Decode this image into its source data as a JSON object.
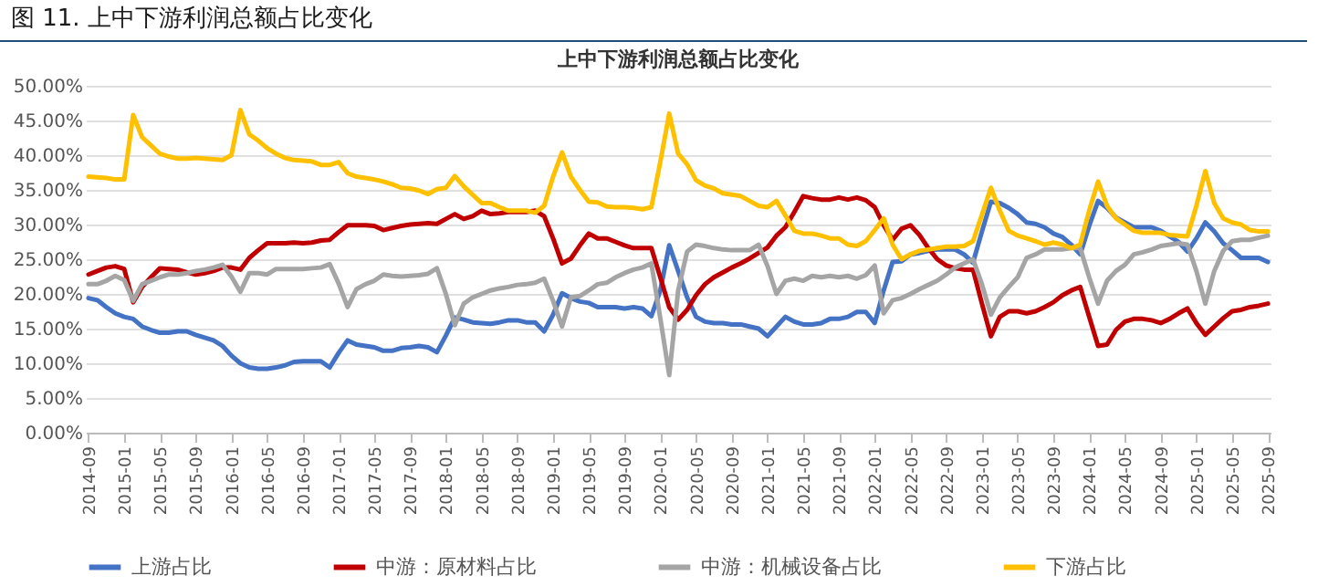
{
  "chart_data": {
    "type": "line",
    "title": "图 11. 上中下游利润总额占比变化",
    "subtitle": "上中下游利润总额占比变化",
    "categories": [
      "2014-09",
      null,
      null,
      null,
      "2015-01",
      null,
      null,
      null,
      "2015-05",
      null,
      null,
      null,
      "2015-09",
      null,
      null,
      null,
      "2016-01",
      null,
      null,
      null,
      "2016-05",
      null,
      null,
      null,
      "2016-09",
      null,
      null,
      null,
      "2017-01",
      null,
      null,
      null,
      "2017-05",
      null,
      null,
      null,
      "2017-09",
      null,
      null,
      null,
      "2018-01",
      null,
      null,
      null,
      "2018-05",
      null,
      null,
      null,
      "2018-09",
      null,
      null,
      null,
      "2019-01",
      null,
      null,
      null,
      "2019-05",
      null,
      null,
      null,
      "2019-09",
      null,
      null,
      null,
      "2020-01",
      null,
      null,
      null,
      "2020-05",
      null,
      null,
      null,
      "2020-09",
      null,
      null,
      null,
      "2021-01",
      null,
      null,
      null,
      "2021-05",
      null,
      null,
      null,
      "2021-09",
      null,
      null,
      null,
      "2022-01",
      null,
      null,
      null,
      "2022-05",
      null,
      null,
      null,
      "2022-09",
      null,
      null,
      null,
      "2023-01",
      null,
      null,
      null,
      "2023-05",
      null,
      null,
      null,
      "2023-09",
      null,
      null,
      null,
      "2024-01",
      null,
      null,
      null,
      "2024-05",
      null,
      null,
      null,
      "2024-09",
      null,
      null,
      null,
      "2025-01",
      null,
      null,
      null,
      "2025-05",
      null,
      null,
      null,
      "2025-09"
    ],
    "series": [
      {
        "name": "上游占比",
        "color": "#4472c4",
        "values": [
          19.4,
          19.1,
          18.1,
          17.2,
          16.7,
          16.4,
          15.3,
          14.8,
          14.4,
          14.4,
          14.6,
          14.6,
          14.1,
          13.7,
          13.3,
          12.5,
          11.1,
          10.0,
          9.4,
          9.2,
          9.2,
          9.4,
          9.7,
          10.2,
          10.3,
          10.3,
          10.3,
          9.4,
          11.5,
          13.3,
          12.7,
          12.5,
          12.3,
          11.8,
          11.8,
          12.2,
          12.3,
          12.5,
          12.3,
          11.6,
          14.0,
          16.6,
          16.3,
          15.9,
          15.8,
          15.7,
          15.9,
          16.2,
          16.2,
          15.9,
          15.9,
          14.6,
          17.0,
          20.1,
          19.4,
          18.9,
          18.7,
          18.1,
          18.1,
          18.1,
          17.9,
          18.1,
          17.9,
          16.8,
          20.5,
          27.0,
          23.3,
          19.5,
          16.7,
          16.0,
          15.8,
          15.8,
          15.6,
          15.6,
          15.3,
          15.0,
          13.9,
          15.3,
          16.7,
          16.0,
          15.6,
          15.6,
          15.8,
          16.4,
          16.4,
          16.7,
          17.4,
          17.4,
          15.8,
          20.5,
          24.6,
          24.7,
          25.7,
          25.9,
          26.2,
          26.4,
          26.4,
          26.4,
          25.7,
          24.5,
          29.0,
          33.3,
          33.1,
          32.4,
          31.5,
          30.3,
          30.1,
          29.6,
          28.7,
          28.2,
          27.1,
          25.7,
          29.8,
          33.4,
          32.4,
          31.0,
          30.3,
          29.6,
          29.6,
          29.6,
          29.1,
          28.3,
          27.5,
          26.1,
          28.0,
          30.3,
          29.0,
          27.3,
          26.3,
          25.2,
          25.2,
          25.2,
          24.6
        ]
      },
      {
        "name": "中游：原材料占比",
        "color": "#c00000",
        "values": [
          22.8,
          23.3,
          23.8,
          24.0,
          23.6,
          18.8,
          21.0,
          22.4,
          23.7,
          23.6,
          23.5,
          23.1,
          22.8,
          23.0,
          23.3,
          23.8,
          23.8,
          23.5,
          25.2,
          26.3,
          27.3,
          27.3,
          27.3,
          27.4,
          27.3,
          27.4,
          27.7,
          27.8,
          28.9,
          29.9,
          29.9,
          29.9,
          29.8,
          29.2,
          29.5,
          29.8,
          30.0,
          30.1,
          30.2,
          30.1,
          30.8,
          31.5,
          30.8,
          31.2,
          32.0,
          31.5,
          31.6,
          31.8,
          31.8,
          31.8,
          32.0,
          31.2,
          28.0,
          24.4,
          25.1,
          27.0,
          28.7,
          28.0,
          28.0,
          27.5,
          27.0,
          26.6,
          26.6,
          26.6,
          22.4,
          18.1,
          16.3,
          17.7,
          19.8,
          21.4,
          22.4,
          23.1,
          23.8,
          24.4,
          25.1,
          25.9,
          26.7,
          28.4,
          29.6,
          31.8,
          34.1,
          33.8,
          33.6,
          33.6,
          33.9,
          33.6,
          33.9,
          33.5,
          32.5,
          29.9,
          27.8,
          29.4,
          29.9,
          28.5,
          26.6,
          25.0,
          24.1,
          23.7,
          23.5,
          23.5,
          18.6,
          13.9,
          16.7,
          17.5,
          17.5,
          17.2,
          17.5,
          18.1,
          18.8,
          19.8,
          20.5,
          21.0,
          16.7,
          12.5,
          12.7,
          14.8,
          16.0,
          16.4,
          16.4,
          16.2,
          15.8,
          16.4,
          17.2,
          17.9,
          15.8,
          14.1,
          15.3,
          16.5,
          17.5,
          17.7,
          18.1,
          18.3,
          18.6
        ]
      },
      {
        "name": "中游：机械设备占比",
        "color": "#a5a5a5",
        "values": [
          21.4,
          21.4,
          21.9,
          22.6,
          22.0,
          19.0,
          21.4,
          21.9,
          22.4,
          22.8,
          22.8,
          23.0,
          23.3,
          23.5,
          23.8,
          24.2,
          22.5,
          20.3,
          23.0,
          23.0,
          22.8,
          23.6,
          23.6,
          23.6,
          23.6,
          23.7,
          23.8,
          24.3,
          21.5,
          18.1,
          20.7,
          21.4,
          21.9,
          22.8,
          22.6,
          22.5,
          22.6,
          22.7,
          22.9,
          23.7,
          20.0,
          15.5,
          18.6,
          19.5,
          20.0,
          20.5,
          20.8,
          21.0,
          21.3,
          21.4,
          21.6,
          22.2,
          19.0,
          15.3,
          19.5,
          19.7,
          20.5,
          21.4,
          21.6,
          22.4,
          23.0,
          23.5,
          23.8,
          24.4,
          16.5,
          8.3,
          20.5,
          26.1,
          27.1,
          26.9,
          26.6,
          26.4,
          26.3,
          26.3,
          26.3,
          27.1,
          24.0,
          20.0,
          21.9,
          22.2,
          21.9,
          22.6,
          22.4,
          22.6,
          22.4,
          22.6,
          22.2,
          22.7,
          24.1,
          17.2,
          19.1,
          19.4,
          20.0,
          20.7,
          21.3,
          21.9,
          22.8,
          23.8,
          24.4,
          25.0,
          21.4,
          17.0,
          19.5,
          21.0,
          22.4,
          25.2,
          25.7,
          26.4,
          26.4,
          26.4,
          26.6,
          26.6,
          22.4,
          18.6,
          21.9,
          23.3,
          24.2,
          25.7,
          26.0,
          26.4,
          26.9,
          27.1,
          27.3,
          27.1,
          23.3,
          18.6,
          23.3,
          26.2,
          27.6,
          27.8,
          27.8,
          28.1,
          28.4
        ]
      },
      {
        "name": "下游占比",
        "color": "#ffc000",
        "values": [
          36.9,
          36.8,
          36.7,
          36.5,
          36.5,
          45.8,
          42.6,
          41.4,
          40.2,
          39.8,
          39.5,
          39.5,
          39.6,
          39.5,
          39.4,
          39.3,
          40.0,
          46.5,
          43.0,
          42.1,
          41.0,
          40.2,
          39.6,
          39.3,
          39.2,
          39.1,
          38.6,
          38.6,
          39.0,
          37.4,
          36.9,
          36.7,
          36.5,
          36.2,
          35.8,
          35.3,
          35.2,
          34.9,
          34.4,
          35.1,
          35.3,
          37.0,
          35.5,
          34.3,
          33.1,
          33.1,
          32.5,
          32.0,
          32.0,
          32.0,
          31.7,
          32.7,
          36.9,
          40.4,
          36.9,
          35.0,
          33.3,
          33.2,
          32.6,
          32.5,
          32.5,
          32.4,
          32.2,
          32.5,
          39.0,
          46.0,
          40.2,
          38.7,
          36.4,
          35.6,
          35.2,
          34.5,
          34.3,
          34.1,
          33.4,
          32.7,
          32.5,
          33.4,
          31.3,
          29.1,
          28.7,
          28.7,
          28.4,
          28.0,
          28.0,
          27.1,
          26.9,
          27.6,
          29.2,
          30.9,
          27.1,
          25.0,
          25.7,
          26.2,
          26.4,
          26.6,
          26.8,
          26.8,
          26.9,
          27.6,
          31.4,
          35.3,
          32.0,
          29.1,
          28.4,
          28.0,
          27.6,
          27.1,
          27.4,
          27.1,
          26.6,
          27.1,
          32.0,
          36.2,
          32.7,
          30.9,
          30.0,
          29.1,
          28.8,
          28.8,
          28.8,
          28.5,
          28.4,
          28.3,
          32.7,
          37.7,
          33.1,
          30.9,
          30.3,
          30.0,
          29.2,
          29.0,
          29.0
        ]
      }
    ],
    "ylim": [
      0,
      50
    ],
    "yticks": [
      {
        "value": 0,
        "label": "0.00%"
      },
      {
        "value": 5,
        "label": "5.00%"
      },
      {
        "value": 10,
        "label": "10.00%"
      },
      {
        "value": 15,
        "label": "15.00%"
      },
      {
        "value": 20,
        "label": "20.00%"
      },
      {
        "value": 25,
        "label": "25.00%"
      },
      {
        "value": 30,
        "label": "30.00%"
      },
      {
        "value": 35,
        "label": "35.00%"
      },
      {
        "value": 40,
        "label": "40.00%"
      },
      {
        "value": 45,
        "label": "45.00%"
      },
      {
        "value": 50,
        "label": "50.00%"
      }
    ],
    "grid": "y",
    "legend": "bottom"
  }
}
